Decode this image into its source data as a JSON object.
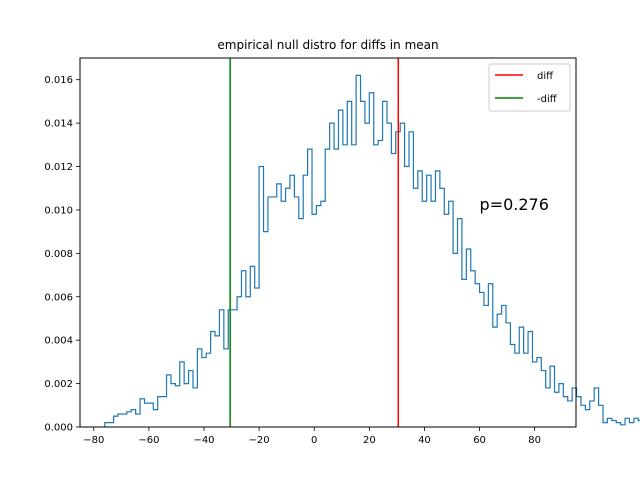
{
  "chart_data": {
    "type": "histogram",
    "title": "empirical null distro for diffs in mean",
    "xlabel": "",
    "ylabel": "",
    "xlim": [
      -85,
      95
    ],
    "ylim": [
      0,
      0.017
    ],
    "x_ticks": [
      -80,
      -60,
      -40,
      -20,
      0,
      20,
      40,
      60,
      80
    ],
    "x_tick_labels": [
      "−80",
      "−60",
      "−40",
      "−20",
      "0",
      "20",
      "40",
      "60",
      "80"
    ],
    "y_ticks": [
      0.0,
      0.002,
      0.004,
      0.006,
      0.008,
      0.01,
      0.012,
      0.014,
      0.016
    ],
    "y_tick_labels": [
      "0.000",
      "0.002",
      "0.004",
      "0.006",
      "0.008",
      "0.010",
      "0.012",
      "0.014",
      "0.016"
    ],
    "grid": false,
    "histogram": {
      "bin_start": -76,
      "bin_width": 1.6,
      "color": "#1f77b4",
      "densities": [
        0.0002,
        0.0002,
        0.0005,
        0.0006,
        0.0006,
        0.0007,
        0.0008,
        0.0006,
        0.0013,
        0.0011,
        0.0011,
        0.0008,
        0.0014,
        0.0014,
        0.0024,
        0.002,
        0.0019,
        0.003,
        0.002,
        0.0026,
        0.0018,
        0.0036,
        0.0032,
        0.0034,
        0.0044,
        0.0042,
        0.0054,
        0.0036,
        0.0054,
        0.0054,
        0.006,
        0.0072,
        0.006,
        0.0074,
        0.0064,
        0.012,
        0.009,
        0.0106,
        0.0106,
        0.0112,
        0.0104,
        0.011,
        0.0116,
        0.0106,
        0.0096,
        0.0116,
        0.0128,
        0.0098,
        0.0102,
        0.0104,
        0.0128,
        0.014,
        0.0128,
        0.0146,
        0.013,
        0.015,
        0.013,
        0.0162,
        0.015,
        0.014,
        0.0154,
        0.013,
        0.0132,
        0.015,
        0.014,
        0.0126,
        0.0136,
        0.014,
        0.012,
        0.0136,
        0.011,
        0.0118,
        0.0104,
        0.0116,
        0.0104,
        0.0118,
        0.011,
        0.0098,
        0.0104,
        0.008,
        0.0096,
        0.0068,
        0.0082,
        0.0072,
        0.0066,
        0.0062,
        0.0056,
        0.0066,
        0.0046,
        0.0052,
        0.0056,
        0.0048,
        0.0038,
        0.0034,
        0.0046,
        0.0034,
        0.0044,
        0.003,
        0.0032,
        0.0026,
        0.0018,
        0.0028,
        0.0016,
        0.002,
        0.0014,
        0.0012,
        0.0018,
        0.0014,
        0.001,
        0.0008,
        0.0012,
        0.0018,
        0.001,
        0.0002,
        0.0004,
        0.0003,
        0.0002,
        0.0001,
        0.0004,
        0.0002,
        0.0004,
        0.0003,
        0.0002,
        0.0001,
        0.0002,
        0.0003,
        0.0003,
        0.0001,
        0.0001,
        0.0002,
        0.0003,
        0.0001,
        0.0002
      ]
    },
    "vlines": [
      {
        "name": "diff",
        "x": 30.5,
        "color": "#ff0000"
      },
      {
        "name": "-diff",
        "x": -30.5,
        "color": "#008000"
      }
    ],
    "legend": {
      "position": "top-right",
      "entries": [
        {
          "label": "diff",
          "color": "#ff0000"
        },
        {
          "label": "-diff",
          "color": "#008000"
        }
      ]
    },
    "annotation": {
      "text": "p=0.276",
      "x": 60,
      "y": 0.01
    }
  }
}
